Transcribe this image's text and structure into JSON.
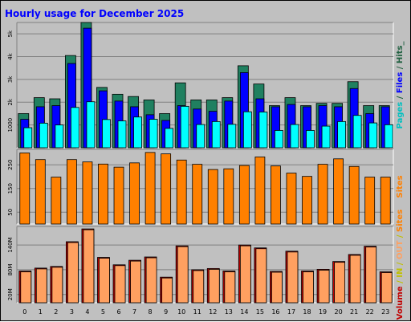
{
  "chart_data": {
    "title": "Hourly usage for December 2025",
    "hours": [
      "0",
      "1",
      "2",
      "3",
      "4",
      "5",
      "6",
      "7",
      "8",
      "9",
      "10",
      "11",
      "12",
      "13",
      "14",
      "15",
      "16",
      "17",
      "18",
      "19",
      "20",
      "21",
      "22",
      "23"
    ],
    "panels": [
      {
        "type": "bar",
        "side_label": [
          {
            "text": "Pages",
            "color": "#00c0c0"
          },
          {
            "text": " / ",
            "color": "#206040"
          },
          {
            "text": "Files",
            "color": "#0000ff"
          },
          {
            "text": " / ",
            "color": "#206040"
          },
          {
            "text": "Hits_",
            "color": "#206040"
          }
        ],
        "ylim": [
          0,
          5500
        ],
        "yticks": [
          1000,
          2000,
          3000,
          4000,
          5000
        ],
        "ytick_labels": [
          "1000",
          "2k",
          "3k",
          "4k",
          "5k"
        ],
        "series": [
          {
            "name": "Hits",
            "color": "#208060",
            "values": [
              1500,
              2200,
              2150,
              4050,
              5700,
              2650,
              2350,
              2250,
              2100,
              1500,
              2850,
              2100,
              2100,
              2200,
              3600,
              2800,
              1850,
              2200,
              1850,
              1950,
              1950,
              2900,
              1850,
              1850
            ]
          },
          {
            "name": "Files",
            "color": "#0000ff",
            "values": [
              1250,
              1800,
              1850,
              3700,
              5250,
              2500,
              2050,
              1800,
              1450,
              1200,
              1850,
              1700,
              1600,
              2050,
              3300,
              2150,
              1800,
              1900,
              1800,
              1850,
              1800,
              2600,
              1500,
              1800
            ]
          },
          {
            "name": "Pages",
            "color": "#00ffff",
            "values": [
              880,
              1080,
              1000,
              1770,
              2020,
              1240,
              1180,
              1350,
              1250,
              850,
              1820,
              1020,
              1150,
              1030,
              1580,
              1570,
              760,
              1020,
              760,
              950,
              1150,
              1420,
              1090,
              1010
            ]
          }
        ]
      },
      {
        "type": "bar",
        "side_label": [
          {
            "text": "Sites",
            "color": "#ff8000"
          }
        ],
        "ylim": [
          0,
          315
        ],
        "yticks": [
          50,
          150,
          250
        ],
        "ytick_labels": [
          "50",
          "150",
          "250"
        ],
        "series": [
          {
            "name": "Sites",
            "color": "#ff8000",
            "values": [
              300,
              272,
              198,
              272,
              262,
              253,
              240,
              258,
              302,
              296,
              270,
              252,
              230,
              233,
              247,
              283,
              245,
              215,
              201,
              252,
              275,
              243,
              198,
              198
            ]
          }
        ]
      },
      {
        "type": "bar",
        "side_label": [
          {
            "text": "Volume",
            "color": "#c00000"
          },
          {
            "text": " / ",
            "color": "#c0c000"
          },
          {
            "text": "IN",
            "color": "#c0c000"
          },
          {
            "text": " / ",
            "color": "#c0c000"
          },
          {
            "text": "OUT",
            "color": "#ffa060"
          },
          {
            "text": " / ",
            "color": "#c0c000"
          },
          {
            "text": "Sites",
            "color": "#ff8000"
          }
        ],
        "ylim": [
          0,
          185
        ],
        "yticks": [
          20,
          80,
          140
        ],
        "ytick_labels": [
          "20M",
          "80M",
          "140M"
        ],
        "series": [
          {
            "name": "Volume",
            "color": "#c00000",
            "values": [
              77,
              84,
              88,
              148,
              179,
              110,
              92,
              103,
              111,
              62,
              138,
              80,
              83,
              77,
              140,
              133,
              76,
              125,
              77,
              81,
              100,
              117,
              137,
              75
            ]
          },
          {
            "name": "OUT",
            "color": "#ffa060",
            "values": [
              75,
              82,
              86,
              146,
              177,
              108,
              90,
              101,
              109,
              60,
              136,
              78,
              81,
              75,
              138,
              131,
              74,
              123,
              75,
              79,
              98,
              115,
              135,
              73
            ]
          }
        ]
      }
    ]
  }
}
